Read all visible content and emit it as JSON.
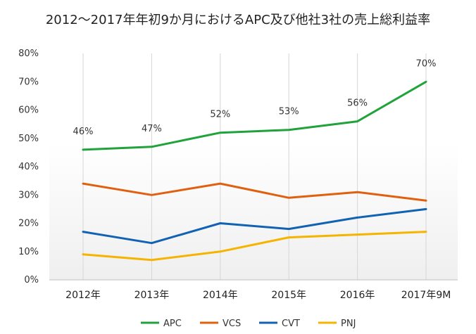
{
  "chart_data": {
    "type": "line",
    "title": "2012～2017年年初9か月におけるAPC及び他社3社の売上総利益率",
    "xlabel": "",
    "ylabel": "",
    "categories": [
      "2012年",
      "2013年",
      "2014年",
      "2015年",
      "2016年",
      "2017年9M"
    ],
    "ylim": [
      0,
      80
    ],
    "yticks": [
      0,
      10,
      20,
      30,
      40,
      50,
      60,
      70,
      80
    ],
    "ytick_labels": [
      "0%",
      "10%",
      "20%",
      "30%",
      "40%",
      "50%",
      "60%",
      "70%",
      "80%"
    ],
    "value_unit": "%",
    "grid": "vertical",
    "legend_position": "bottom",
    "series": [
      {
        "name": "APC",
        "color": "#1fa33a",
        "values": [
          46,
          47,
          52,
          53,
          56,
          70
        ],
        "data_labels": [
          "46%",
          "47%",
          "52%",
          "53%",
          "56%",
          "70%"
        ]
      },
      {
        "name": "VCS",
        "color": "#e0600f",
        "values": [
          34,
          30,
          34,
          29,
          31,
          28
        ]
      },
      {
        "name": "CVT",
        "color": "#1262b3",
        "values": [
          17,
          13,
          20,
          18,
          22,
          25
        ]
      },
      {
        "name": "PNJ",
        "color": "#f5b400",
        "values": [
          9,
          7,
          10,
          15,
          16,
          17
        ]
      }
    ]
  }
}
